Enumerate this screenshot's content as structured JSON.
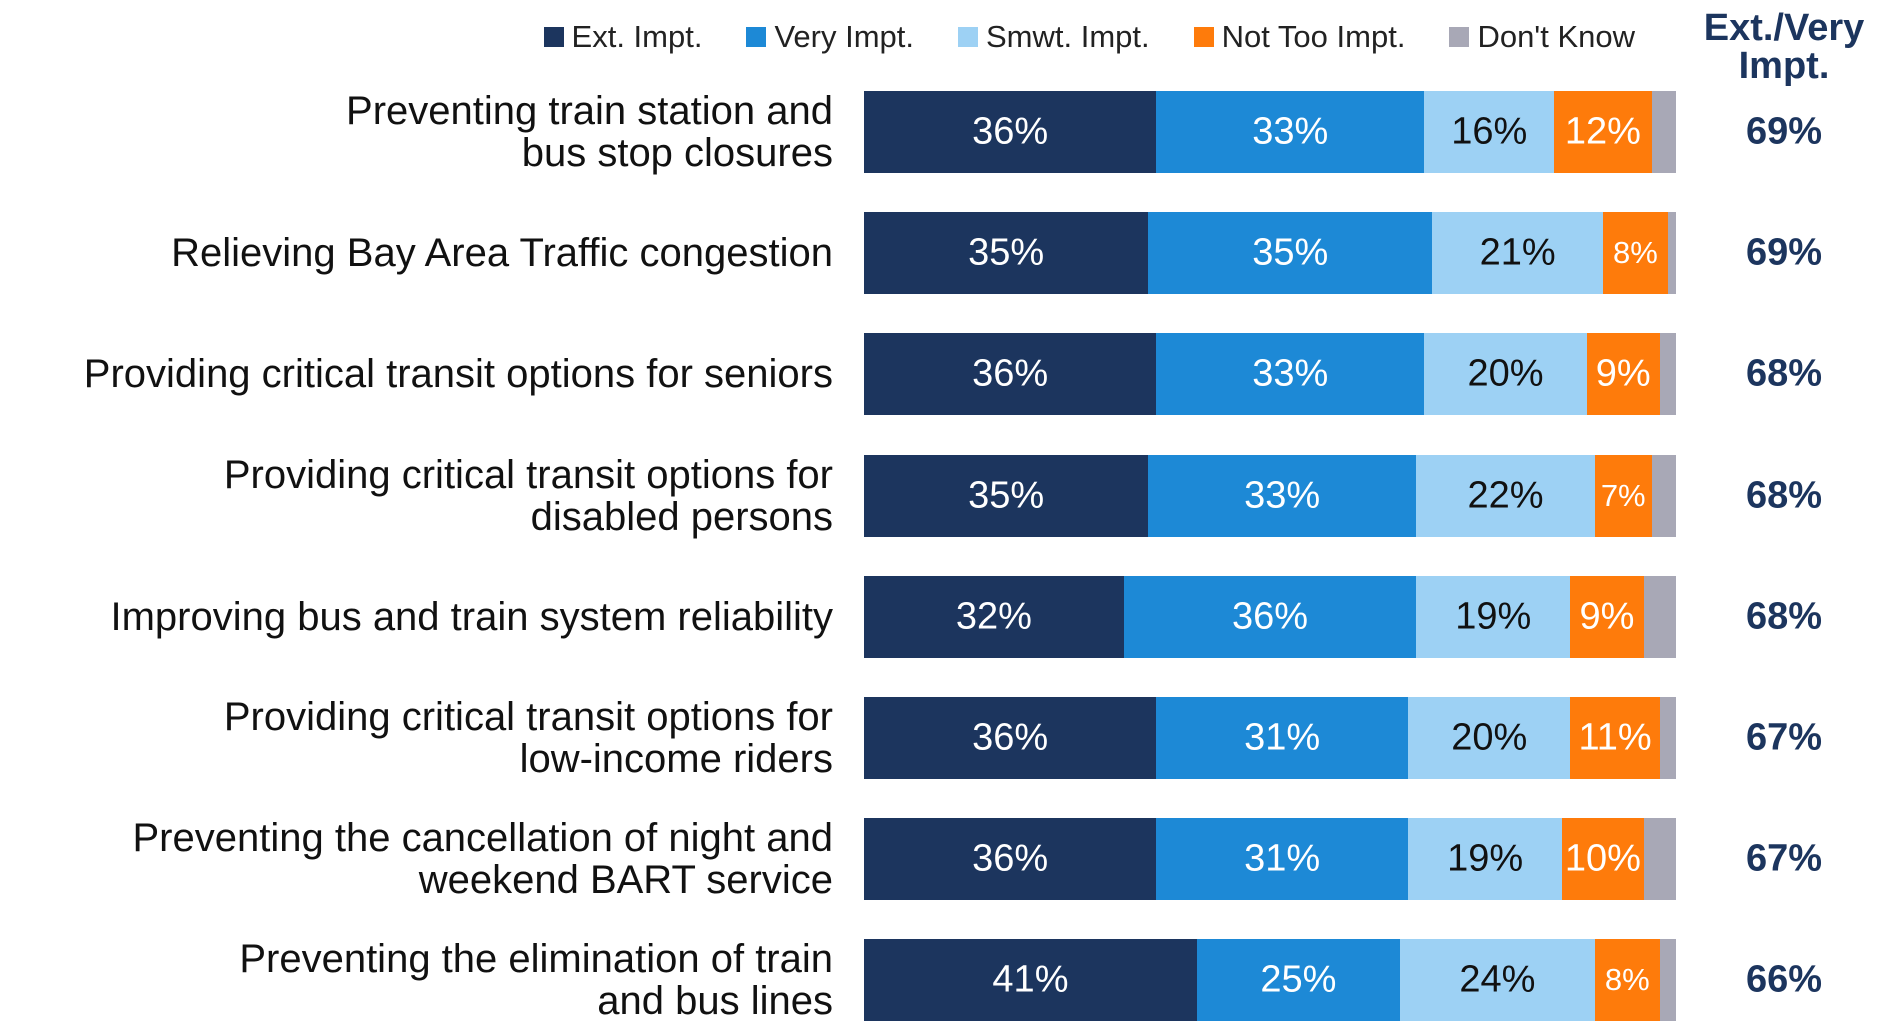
{
  "chart_data": {
    "type": "stacked_barh",
    "categories": [
      "Preventing train station and\nbus stop closures",
      "Relieving Bay Area Traffic congestion",
      "Providing critical transit options for seniors",
      "Providing critical transit options for\ndisabled persons",
      "Improving bus and train system reliability",
      "Providing critical transit options for\nlow-income riders",
      "Preventing the cancellation of night and\nweekend BART service",
      "Preventing the elimination of train\nand bus lines"
    ],
    "series": [
      {
        "name": "Ext. Impt.",
        "color": "#1c355e",
        "values": [
          36,
          35,
          36,
          35,
          32,
          36,
          36,
          41
        ],
        "value_labels": [
          "36%",
          "35%",
          "36%",
          "35%",
          "32%",
          "36%",
          "36%",
          "41%"
        ]
      },
      {
        "name": "Very Impt.",
        "color": "#1d89d6",
        "values": [
          33,
          35,
          33,
          33,
          36,
          31,
          31,
          25
        ],
        "value_labels": [
          "33%",
          "35%",
          "33%",
          "33%",
          "36%",
          "31%",
          "31%",
          "25%"
        ]
      },
      {
        "name": "Smwt. Impt.",
        "color": "#9dd1f4",
        "values": [
          16,
          21,
          20,
          22,
          19,
          20,
          19,
          24
        ],
        "value_labels": [
          "16%",
          "21%",
          "20%",
          "22%",
          "19%",
          "20%",
          "19%",
          "24%"
        ]
      },
      {
        "name": "Not Too Impt.",
        "color": "#fe7b0b",
        "values": [
          12,
          8,
          9,
          7,
          9,
          11,
          10,
          8
        ],
        "value_labels": [
          "12%",
          "8%",
          "9%",
          "7%",
          "9%",
          "11%",
          "10%",
          "8%"
        ]
      },
      {
        "name": "Don't Know",
        "color": "#a8a8b6",
        "values": [
          3,
          1,
          2,
          3,
          4,
          2,
          4,
          2
        ]
      }
    ],
    "xlim": [
      0,
      100
    ],
    "total_column": {
      "title": "Ext./Very\nImpt.",
      "values": [
        69,
        69,
        68,
        68,
        68,
        67,
        67,
        66
      ],
      "value_labels": [
        "69%",
        "69%",
        "68%",
        "68%",
        "68%",
        "67%",
        "67%",
        "66%"
      ],
      "color": "#1c355e"
    }
  }
}
